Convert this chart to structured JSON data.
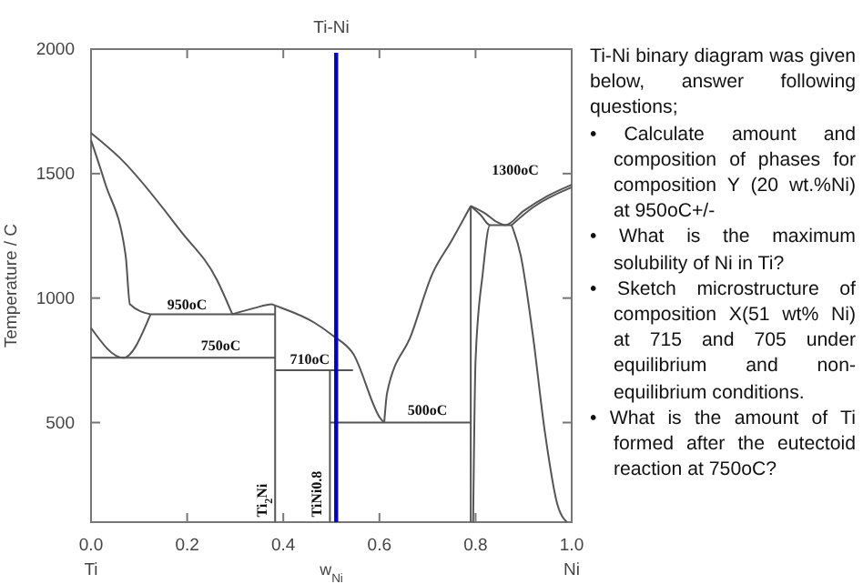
{
  "chart_data": {
    "type": "line",
    "title": "Ti-Ni",
    "xlabel": "w$_{Ni}$",
    "ylabel": "Temperature / C",
    "xlim": [
      0,
      1
    ],
    "ylim": [
      100,
      2000
    ],
    "xticks": [
      {
        "value": 0,
        "label": "0.0"
      },
      0.2,
      0.4,
      0.6,
      0.8,
      {
        "value": 1,
        "label": "1.0"
      }
    ],
    "yticks": [
      500,
      1000,
      1500,
      2000
    ],
    "grid": false,
    "marker": "none",
    "line_style": "solid",
    "series": [
      {
        "color": "#555555",
        "x": [
          0,
          0.061,
          0.187,
          0.262,
          0.294
        ],
        "values": [
          1663,
          1561,
          1268,
          1073,
          935
        ]
      },
      {
        "color": "#555555",
        "x": [
          0,
          0.029,
          0.072,
          0.081,
          0.124
        ],
        "values": [
          1634,
          1463,
          1171,
          975,
          935
        ]
      },
      {
        "color": "#555555",
        "x": [
          0.124,
          0.383
        ],
        "values": [
          935,
          935
        ]
      },
      {
        "color": "#555555",
        "x": [
          0.294,
          0.34,
          0.376,
          0.383,
          0.464,
          0.502,
          0.545,
          0.603,
          0.61
        ],
        "values": [
          935,
          960,
          975,
          970,
          902,
          851,
          778,
          514,
          500
        ]
      },
      {
        "color": "#555555",
        "x": [
          0.61,
          0.616,
          0.666,
          0.71,
          0.75,
          0.79
        ],
        "values": [
          500,
          620,
          851,
          1097,
          1230,
          1370
        ]
      },
      {
        "color": "#555555",
        "x": [
          0,
          0.067,
          0.124
        ],
        "values": [
          880,
          760,
          935
        ]
      },
      {
        "color": "#555555",
        "x": [
          0,
          0.383
        ],
        "values": [
          760,
          760
        ]
      },
      {
        "color": "#555555",
        "x": [
          0.383,
          0.383
        ],
        "values": [
          970,
          100
        ]
      },
      {
        "color": "#555555",
        "x": [
          0.383,
          0.545
        ],
        "values": [
          710,
          710
        ]
      },
      {
        "color": "#555555",
        "x": [
          0.497,
          0.497
        ],
        "values": [
          710,
          100
        ]
      },
      {
        "color": "#555555",
        "x": [
          0.497,
          0.79
        ],
        "values": [
          500,
          500
        ]
      },
      {
        "color": "#555555",
        "x": [
          0.79,
          0.79
        ],
        "values": [
          1370,
          100
        ]
      },
      {
        "color": "#555555",
        "x": [
          0.79,
          0.82,
          0.845,
          0.862,
          0.9,
          0.95,
          1
        ],
        "values": [
          1370,
          1340,
          1305,
          1293,
          1350,
          1410,
          1455
        ]
      },
      {
        "color": "#555555",
        "x": [
          0.875,
          0.92,
          1
        ],
        "values": [
          1293,
          1365,
          1445
        ]
      },
      {
        "color": "#555555",
        "x": [
          0.79,
          0.81,
          0.83,
          0.815,
          0.8,
          0.795
        ],
        "values": [
          1370,
          1335,
          1293,
          1100,
          750,
          100
        ]
      },
      {
        "color": "#555555",
        "x": [
          0.83,
          0.875
        ],
        "values": [
          1293,
          1293
        ]
      },
      {
        "color": "#555555",
        "x": [
          0.875,
          0.894,
          0.919,
          0.944,
          0.97,
          0.99
        ],
        "values": [
          1293,
          1171,
          854,
          465,
          173,
          100
        ]
      }
    ],
    "ref_lines": [
      {
        "axis": "x",
        "value": 0.51,
        "color": "#0000cc"
      }
    ],
    "annotations": [
      {
        "text": "950oC",
        "x": 0.2,
        "y": 955
      },
      {
        "text": "750oC",
        "x": 0.27,
        "y": 790
      },
      {
        "text": "710oC",
        "x": 0.455,
        "y": 735
      },
      {
        "text": "500oC",
        "x": 0.7,
        "y": 530
      },
      {
        "text": "Ti$_{2}$Ni",
        "x": 0.365,
        "y": 120
      },
      {
        "text": "TiNi0.8",
        "x": 0.48,
        "y": 120
      },
      "1300oC",
      "Ti",
      "Ni",
      "Ti-Ni binary diagram was given below, answer following questions;",
      "• Calculate amount and composition of phases for composition Y (20 wt.%Ni) at 950oC+/-",
      "• What is the maximum solubility of Ni in Ti?",
      "• Sketch microstructure of composition X(51 wt% Ni) at 715 and 705 under equilibrium and non-equilibrium conditions.",
      "• What is the amount of Ti formed after the eutectoid reaction at 750oC?"
    ]
  }
}
